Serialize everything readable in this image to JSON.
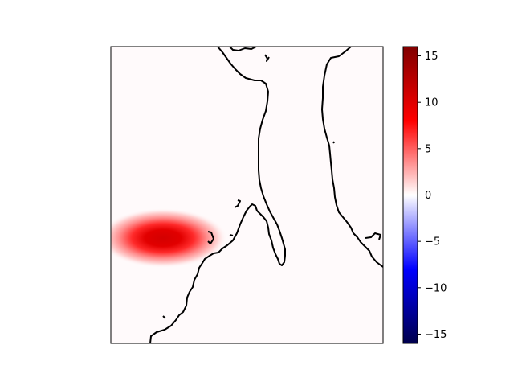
{
  "chart_data": {
    "type": "heatmap",
    "title": "",
    "xlabel": "",
    "ylabel": "",
    "axes_ticks_visible": false,
    "field": {
      "background_value": 0,
      "anomaly": {
        "shape": "elliptical gaussian",
        "peak_value": 16,
        "sign": "positive"
      }
    },
    "overlay": "coastline contours (black)",
    "colorbar": {
      "colormap": "seismic",
      "range": [
        -16,
        16
      ],
      "ticks": [
        15,
        10,
        5,
        0,
        -5,
        -10,
        -15
      ],
      "tick_labels": [
        "15",
        "10",
        "5",
        "0",
        "−5",
        "−10",
        "−15"
      ],
      "colors": [
        "#00004c",
        "#0000ff",
        "#ffffff",
        "#ff0000",
        "#800000"
      ]
    }
  }
}
